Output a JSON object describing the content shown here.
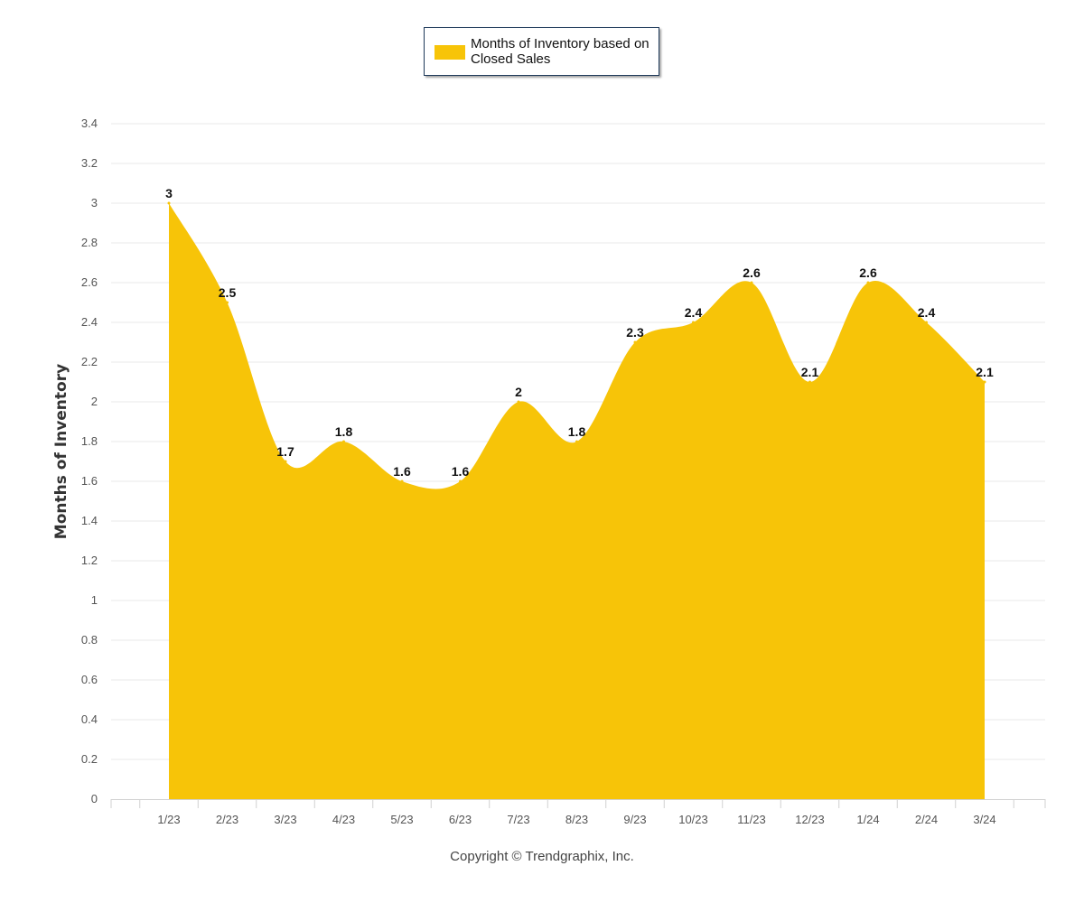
{
  "chart_data": {
    "type": "area",
    "title": "",
    "xlabel": "",
    "ylabel": "Months of Inventory",
    "ylim": [
      0,
      3.4
    ],
    "yticks": [
      "0",
      "0.2",
      "0.4",
      "0.6",
      "0.8",
      "1",
      "1.2",
      "1.4",
      "1.6",
      "1.8",
      "2",
      "2.2",
      "2.4",
      "2.6",
      "2.8",
      "3",
      "3.2",
      "3.4"
    ],
    "grid": true,
    "legend_position": "top-center",
    "categories": [
      "1/23",
      "2/23",
      "3/23",
      "4/23",
      "5/23",
      "6/23",
      "7/23",
      "8/23",
      "9/23",
      "10/23",
      "11/23",
      "12/23",
      "1/24",
      "2/24",
      "3/24"
    ],
    "series": [
      {
        "name": "Months of Inventory based on Closed Sales",
        "color": "#f7c408",
        "values": [
          3,
          2.5,
          1.7,
          1.8,
          1.6,
          1.6,
          2,
          1.8,
          2.3,
          2.4,
          2.6,
          2.1,
          2.6,
          2.4,
          2.1
        ],
        "labels": [
          "3",
          "2.5",
          "1.7",
          "1.8",
          "1.6",
          "1.6",
          "2",
          "1.8",
          "2.3",
          "2.4",
          "2.6",
          "2.1",
          "2.6",
          "2.4",
          "2.1"
        ]
      }
    ]
  },
  "legend": {
    "label": "Months of Inventory based on Closed Sales"
  },
  "footer": {
    "copyright": "Copyright © Trendgraphix, Inc."
  }
}
